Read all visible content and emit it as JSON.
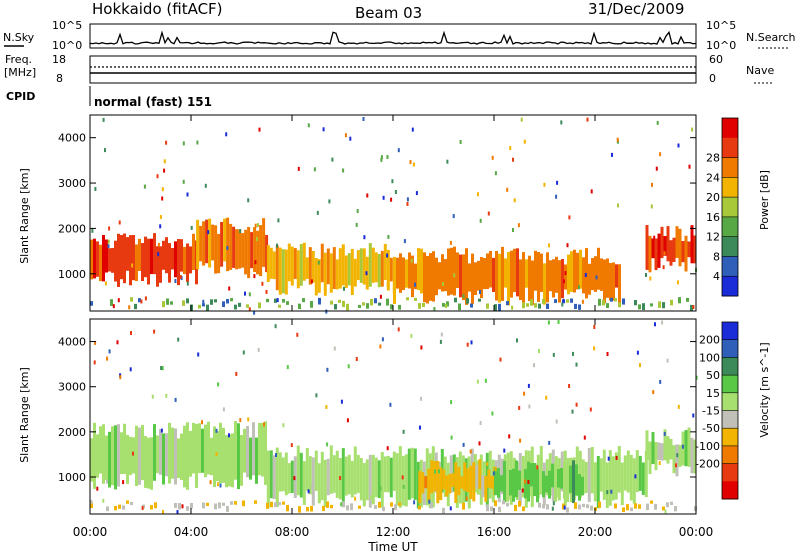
{
  "header": {
    "title": "Hokkaido (fitACF)",
    "beam": "Beam 03",
    "date": "31/Dec/2009"
  },
  "nsky_panel": {
    "left_label": "N.Sky",
    "right_label": "N.Search",
    "y_top_label": "10^5",
    "y_bottom_label": "10^0",
    "right_top_label": "10^5",
    "right_bottom_label": "10^0"
  },
  "freq_panel": {
    "left_label_line1": "Freq.",
    "left_label_line2": "[MHz]",
    "right_label": "Nave",
    "left_ticks": [
      "18",
      "8"
    ],
    "right_ticks": [
      "60",
      "0"
    ]
  },
  "cpid": {
    "label": "CPID",
    "program": "normal (fast) 151"
  },
  "x_axis": {
    "label": "Time UT",
    "tick_labels": [
      "00:00",
      "04:00",
      "08:00",
      "12:00",
      "16:00",
      "20:00",
      "00:00"
    ]
  },
  "chart_data": [
    {
      "type": "heatmap",
      "panel": "power",
      "ylabel": "Slant Range [km]",
      "ylim": [
        180,
        4500
      ],
      "y_ticks": [
        1000,
        2000,
        3000,
        4000
      ],
      "xlim_hours": [
        0,
        24
      ],
      "colorbar": {
        "label": "Power [dB]",
        "ticks": [
          "4",
          "8",
          "12",
          "16",
          "20",
          "24",
          "28"
        ],
        "colors": [
          "#1a2bd8",
          "#2f5fb8",
          "#3c8a5a",
          "#58a846",
          "#a8c83a",
          "#f2b400",
          "#f07a00",
          "#e83a10",
          "#e00000"
        ]
      },
      "echo_regions": [
        {
          "t_start": 0.0,
          "t_end": 4.2,
          "range_low": 900,
          "range_high": 1750,
          "level": "28"
        },
        {
          "t_start": 4.2,
          "t_end": 7.0,
          "range_low": 1100,
          "range_high": 2050,
          "level": "24"
        },
        {
          "t_start": 7.0,
          "t_end": 12.0,
          "range_low": 700,
          "range_high": 1500,
          "level": "20"
        },
        {
          "t_start": 12.0,
          "t_end": 21.0,
          "range_low": 500,
          "range_high": 1400,
          "level": "24"
        },
        {
          "t_start": 22.0,
          "t_end": 24.0,
          "range_low": 1200,
          "range_high": 1900,
          "level": "28"
        }
      ]
    },
    {
      "type": "heatmap",
      "panel": "velocity",
      "ylabel": "Slant Range [km]",
      "ylim": [
        180,
        4500
      ],
      "y_ticks": [
        1000,
        2000,
        3000,
        4000
      ],
      "xlim_hours": [
        0,
        24
      ],
      "colorbar": {
        "label": "Velocity [m s^-1]",
        "ticks": [
          "200",
          "100",
          "50",
          "15",
          "-15",
          "-50",
          "-100",
          "-200"
        ],
        "colors": [
          "#1a2bd8",
          "#2f5fb8",
          "#3c8a5a",
          "#58c846",
          "#a8e070",
          "#c0c0b8",
          "#f2b400",
          "#f07a00",
          "#e83a10",
          "#e00000"
        ]
      },
      "echo_regions": [
        {
          "t_start": 0.0,
          "t_end": 7.0,
          "range_low": 900,
          "range_high": 2050,
          "level": "15"
        },
        {
          "t_start": 7.0,
          "t_end": 22.0,
          "range_low": 500,
          "range_high": 1500,
          "level": "15"
        },
        {
          "t_start": 13.0,
          "t_end": 16.0,
          "range_low": 600,
          "range_high": 1200,
          "level": "-50"
        },
        {
          "t_start": 16.0,
          "t_end": 19.5,
          "range_low": 600,
          "range_high": 1200,
          "level": "50"
        },
        {
          "t_start": 22.0,
          "t_end": 24.0,
          "range_low": 1200,
          "range_high": 1900,
          "level": "15"
        }
      ]
    }
  ]
}
